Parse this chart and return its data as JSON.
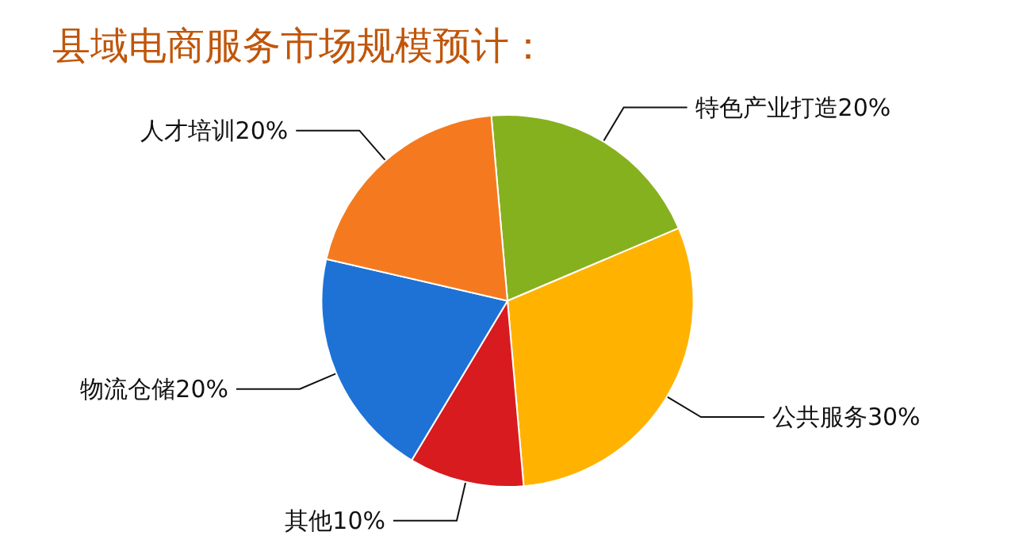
{
  "chart_data": {
    "type": "pie",
    "title": "县域电商服务市场规模预计：",
    "categories": [
      "特色产业打造",
      "公共服务",
      "其他",
      "物流仓储",
      "人才培训"
    ],
    "values": [
      20,
      30,
      10,
      20,
      20
    ],
    "value_labels": [
      "20%",
      "30%",
      "10%",
      "20%",
      "20%"
    ],
    "colors": [
      "#86b11f",
      "#ffb300",
      "#d81b1f",
      "#1e72d6",
      "#f57a1f"
    ],
    "legend": false
  }
}
